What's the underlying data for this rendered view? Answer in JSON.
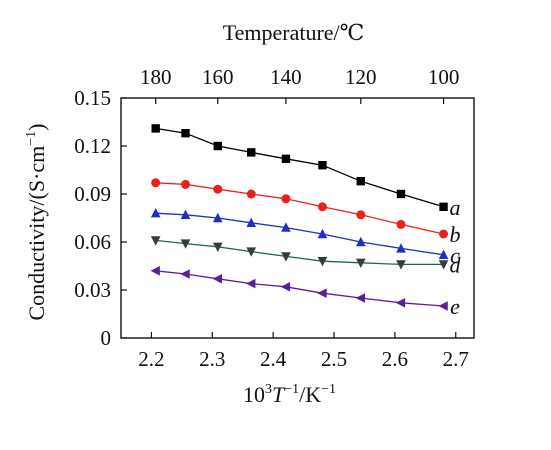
{
  "chart_data": {
    "type": "line",
    "title": "",
    "xlabel": {
      "pre": "10",
      "sup1": "3",
      "T": "T",
      "sup2": "−1",
      "post": "/K",
      "sup3": "−1"
    },
    "ylabel": {
      "main": "Conductivity/(S·cm",
      "sup": "−1",
      "close": ")"
    },
    "top_xlabel": "Temperature/℃",
    "xlim": [
      2.15,
      2.73
    ],
    "ylim": [
      0,
      0.15
    ],
    "x_ticks": [
      2.2,
      2.3,
      2.4,
      2.5,
      2.6,
      2.7
    ],
    "x_tick_labels": [
      "2.2",
      "2.3",
      "2.4",
      "2.5",
      "2.6",
      "2.7"
    ],
    "y_ticks": [
      0,
      0.03,
      0.06,
      0.09,
      0.12,
      0.15
    ],
    "y_tick_labels": [
      "0",
      "0.03",
      "0.06",
      "0.09",
      "0.12",
      "0.15"
    ],
    "top_ticks": [
      {
        "label": "180",
        "inv": 2.207
      },
      {
        "label": "160",
        "inv": 2.309
      },
      {
        "label": "140",
        "inv": 2.421
      },
      {
        "label": "120",
        "inv": 2.544
      },
      {
        "label": "100",
        "inv": 2.68
      }
    ],
    "x": [
      2.207,
      2.256,
      2.309,
      2.364,
      2.421,
      2.481,
      2.544,
      2.61,
      2.68
    ],
    "series": [
      {
        "label": "a",
        "color": "#000000",
        "marker": "square",
        "values": [
          0.131,
          0.128,
          0.12,
          0.116,
          0.112,
          0.108,
          0.098,
          0.09,
          0.082
        ]
      },
      {
        "label": "b",
        "color": "#e8211c",
        "marker": "circle",
        "values": [
          0.097,
          0.096,
          0.093,
          0.09,
          0.087,
          0.082,
          0.077,
          0.071,
          0.065
        ]
      },
      {
        "label": "c",
        "color": "#1e2fc2",
        "marker": "triangle-up",
        "values": [
          0.078,
          0.077,
          0.075,
          0.072,
          0.069,
          0.065,
          0.06,
          0.056,
          0.052
        ]
      },
      {
        "label": "d",
        "color": "#3a3a3a",
        "line_color": "#1f6b3a",
        "marker": "triangle-down",
        "values": [
          0.061,
          0.059,
          0.057,
          0.054,
          0.051,
          0.048,
          0.047,
          0.046,
          0.046
        ]
      },
      {
        "label": "e",
        "color": "#5a1f9a",
        "marker": "triangle-left",
        "values": [
          0.042,
          0.04,
          0.037,
          0.034,
          0.032,
          0.028,
          0.025,
          0.022,
          0.02
        ]
      }
    ],
    "grid": false,
    "legend": "inline labels at right end of each series"
  }
}
